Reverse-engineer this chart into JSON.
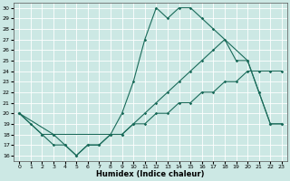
{
  "xlabel": "Humidex (Indice chaleur)",
  "background_color": "#cce8e4",
  "grid_color": "#ffffff",
  "line_color": "#1a6b5a",
  "xlim": [
    -0.5,
    23.5
  ],
  "ylim": [
    15.5,
    30.5
  ],
  "xticks": [
    0,
    1,
    2,
    3,
    4,
    5,
    6,
    7,
    8,
    9,
    10,
    11,
    12,
    13,
    14,
    15,
    16,
    17,
    18,
    19,
    20,
    21,
    22,
    23
  ],
  "yticks": [
    16,
    17,
    18,
    19,
    20,
    21,
    22,
    23,
    24,
    25,
    26,
    27,
    28,
    29,
    30
  ],
  "line1_x": [
    0,
    1,
    2,
    3,
    4,
    5,
    6,
    7,
    8,
    9,
    10,
    11,
    12,
    13,
    14,
    15,
    16,
    17,
    20,
    21,
    22,
    23
  ],
  "line1_y": [
    20,
    19,
    18,
    17,
    17,
    16,
    17,
    17,
    18,
    20,
    23,
    27,
    30,
    29,
    30,
    30,
    29,
    28,
    25,
    22,
    19,
    19
  ],
  "line2_x": [
    0,
    3,
    4,
    5,
    6,
    7,
    8,
    9,
    10,
    11,
    12,
    13,
    14,
    15,
    16,
    17,
    18,
    19,
    20,
    21,
    22,
    23
  ],
  "line2_y": [
    20,
    18,
    17,
    16,
    17,
    17,
    18,
    18,
    19,
    19,
    20,
    20,
    21,
    21,
    22,
    22,
    23,
    23,
    24,
    24,
    24,
    24
  ],
  "line3_x": [
    0,
    2,
    3,
    9,
    10,
    11,
    12,
    13,
    14,
    15,
    16,
    17,
    18,
    19,
    20,
    21,
    22,
    23
  ],
  "line3_y": [
    20,
    18,
    18,
    18,
    19,
    20,
    21,
    22,
    23,
    24,
    25,
    26,
    27,
    25,
    25,
    22,
    19,
    19
  ]
}
